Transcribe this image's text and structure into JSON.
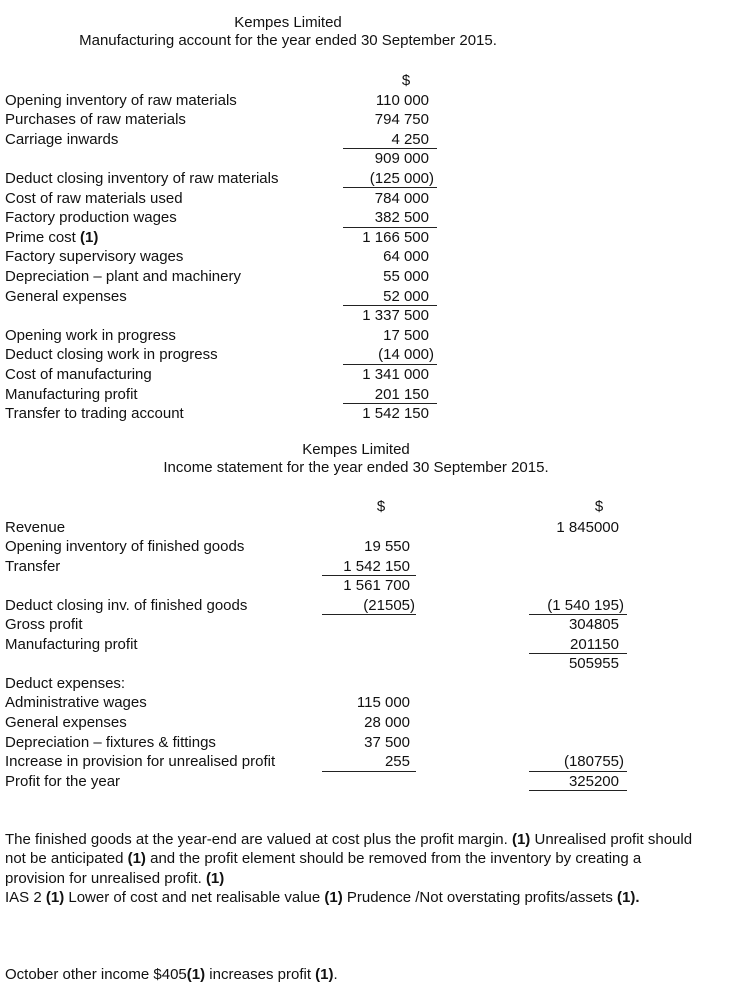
{
  "manufacturing": {
    "company": "Kempes Limited",
    "title": "Manufacturing account for the year ended 30 September 2015.",
    "currency_headers": [
      "$"
    ],
    "rows": [
      {
        "label": "Opening inventory of raw materials",
        "amounts": [
          "110 000"
        ]
      },
      {
        "label": "Purchases of raw materials",
        "amounts": [
          "794 750"
        ]
      },
      {
        "label": "Carriage inwards",
        "amounts": [
          "4 250"
        ],
        "rule_below": [
          true
        ]
      },
      {
        "label": "",
        "amounts": [
          "909 000"
        ]
      },
      {
        "label": "Deduct closing inventory of raw materials",
        "amounts": [
          "(125 000)"
        ],
        "rule_below": [
          true
        ]
      },
      {
        "label": "Cost of raw materials used",
        "amounts": [
          "784 000"
        ]
      },
      {
        "label": "Factory production wages",
        "amounts": [
          "382 500"
        ],
        "rule_below": [
          true
        ]
      },
      {
        "label": "Prime cost",
        "mark": "(1)",
        "amounts": [
          "1 166 500"
        ]
      },
      {
        "label": "Factory supervisory wages",
        "amounts": [
          "64 000"
        ]
      },
      {
        "label": "Depreciation – plant and machinery",
        "amounts": [
          "55 000"
        ]
      },
      {
        "label": "General expenses",
        "amounts": [
          "52 000"
        ],
        "rule_below": [
          true
        ]
      },
      {
        "label": "",
        "amounts": [
          "1 337 500"
        ]
      },
      {
        "label": "Opening work in progress",
        "amounts": [
          "17 500"
        ]
      },
      {
        "label": "Deduct closing work in progress",
        "amounts": [
          "(14 000)"
        ],
        "rule_below": [
          true
        ]
      },
      {
        "label": "Cost of manufacturing",
        "amounts": [
          "1 341 000"
        ]
      },
      {
        "label": "Manufacturing profit",
        "amounts": [
          "201 150"
        ],
        "rule_below": [
          true
        ]
      },
      {
        "label": "Transfer to trading account",
        "amounts": [
          "1 542 150"
        ]
      }
    ]
  },
  "income": {
    "company": "Kempes Limited",
    "title": "Income statement for the year ended 30 September 2015.",
    "currency_headers": [
      "$",
      "$"
    ],
    "rows": [
      {
        "label": "Revenue",
        "amounts": [
          "",
          "1 845000"
        ]
      },
      {
        "label": "Opening inventory of finished goods",
        "amounts": [
          "19 550",
          ""
        ]
      },
      {
        "label": "Transfer",
        "amounts": [
          "1 542 150",
          ""
        ],
        "rule_below": [
          true,
          false
        ]
      },
      {
        "label": "",
        "amounts": [
          "1 561 700",
          ""
        ]
      },
      {
        "label": "Deduct closing inv. of finished goods",
        "amounts": [
          "(21505)",
          "(1 540 195)"
        ],
        "rule_below": [
          true,
          true
        ]
      },
      {
        "label": "Gross profit",
        "amounts": [
          "",
          "304805"
        ]
      },
      {
        "label": "Manufacturing profit",
        "amounts": [
          "",
          "201150"
        ],
        "rule_below": [
          false,
          true
        ]
      },
      {
        "label": "",
        "amounts": [
          "",
          "505955"
        ]
      },
      {
        "label": "Deduct expenses:",
        "amounts": [
          "",
          ""
        ]
      },
      {
        "label": "Administrative wages",
        "amounts": [
          "115 000",
          ""
        ]
      },
      {
        "label": "General expenses",
        "amounts": [
          "28 000",
          ""
        ]
      },
      {
        "label": "Depreciation – fixtures & fittings",
        "amounts": [
          "37 500",
          ""
        ]
      },
      {
        "label": "Increase in provision for unrealised profit",
        "amounts": [
          "255",
          "(180755)"
        ],
        "rule_below": [
          true,
          true
        ]
      },
      {
        "label": "Profit for the year",
        "amounts": [
          "",
          "325200"
        ],
        "rule_below": [
          false,
          true
        ]
      }
    ]
  },
  "notes": {
    "paragraph1": [
      {
        "text": "The finished goods at the year-end are valued at cost plus the profit margin. "
      },
      {
        "text": "(1)",
        "bold": true
      },
      {
        "text": " Unrealised profit should not be anticipated "
      },
      {
        "text": "(1)",
        "bold": true
      },
      {
        "text": " and the profit element should be removed from the inventory by creating a provision for unrealised profit. "
      },
      {
        "text": "(1)",
        "bold": true
      }
    ],
    "paragraph2": [
      {
        "text": "IAS 2 "
      },
      {
        "text": "(1)",
        "bold": true
      },
      {
        "text": " Lower of cost and net realisable value "
      },
      {
        "text": "(1)",
        "bold": true
      },
      {
        "text": " Prudence /Not overstating profits/assets "
      },
      {
        "text": "(1).",
        "bold": true
      }
    ],
    "paragraph3": [
      {
        "text": "October other income $405"
      },
      {
        "text": "(1)",
        "bold": true
      },
      {
        "text": " increases profit "
      },
      {
        "text": "(1)",
        "bold": true
      },
      {
        "text": "."
      }
    ]
  }
}
